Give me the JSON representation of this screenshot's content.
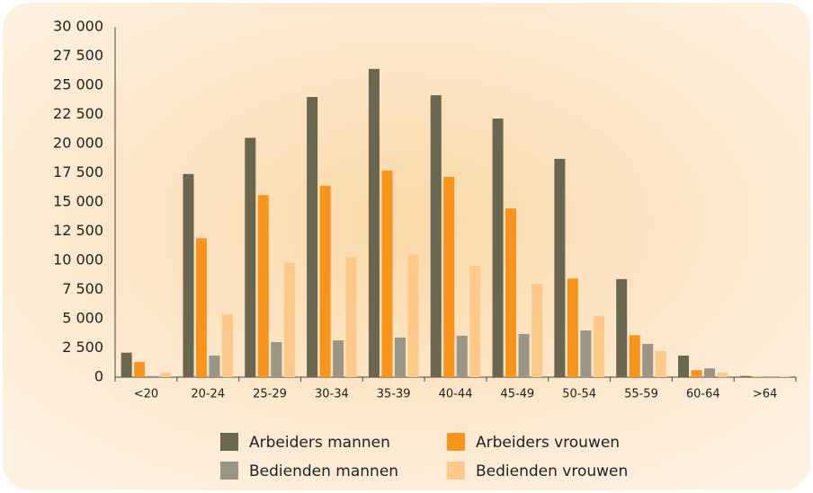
{
  "chart_data": {
    "type": "bar",
    "categories": [
      "<20",
      "20-24",
      "25-29",
      "30-34",
      "35-39",
      "40-44",
      "45-49",
      "50-54",
      "55-59",
      "60-64",
      ">64"
    ],
    "series": [
      {
        "name": "Arbeiders mannen",
        "color": "#6b6650",
        "values": [
          2100,
          17400,
          20500,
          24000,
          26400,
          24150,
          22150,
          18700,
          8400,
          1850,
          100
        ]
      },
      {
        "name": "Arbeiders vrouwen",
        "color": "#f7941d",
        "values": [
          1300,
          11900,
          15600,
          16400,
          17700,
          17150,
          14450,
          8450,
          3600,
          600,
          50
        ]
      },
      {
        "name": "Bedienden mannen",
        "color": "#9a9585",
        "values": [
          100,
          1850,
          3000,
          3150,
          3400,
          3550,
          3700,
          4000,
          2850,
          750,
          50
        ]
      },
      {
        "name": "Bedienden vrouwen",
        "color": "#fcc98a",
        "values": [
          400,
          5400,
          9800,
          10300,
          10500,
          9550,
          8000,
          5250,
          2250,
          400,
          30
        ]
      }
    ],
    "ylim": [
      0,
      30000
    ],
    "yticks": [
      0,
      {
        "value": 2500,
        "label": "2 500"
      },
      {
        "value": 5000,
        "label": "5 000"
      },
      {
        "value": 7500,
        "label": "7 500"
      },
      {
        "value": 10000,
        "label": "10 000"
      },
      {
        "value": 12500,
        "label": "12 500"
      },
      {
        "value": 15000,
        "label": "15 000"
      },
      {
        "value": 17500,
        "label": "17 500"
      },
      {
        "value": 20000,
        "label": "20 000"
      },
      {
        "value": 22500,
        "label": "22 500"
      },
      {
        "value": 25000,
        "label": "25 000"
      },
      {
        "value": 27500,
        "label": "27 500"
      },
      {
        "value": 30000,
        "label": "30 000"
      }
    ],
    "legend": "bottom"
  }
}
